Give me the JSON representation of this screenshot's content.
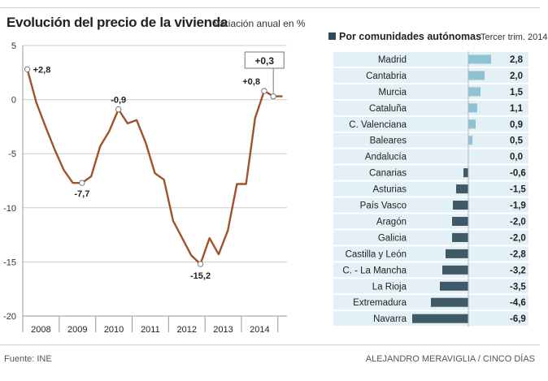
{
  "left_title": "Evolución del precio de la vivienda",
  "left_subtitle": "Variación anual en %",
  "right_title": "Por comunidades autónomas",
  "right_subtitle": "Tercer trim. 2014",
  "source": "Fuente: INE",
  "credit": "ALEJANDRO MERAVIGLIA / CINCO DÍAS",
  "colors": {
    "line": "#a0522d",
    "bar_positive": "#8fc3d3",
    "bar_negative": "#3f5a66",
    "row_band": "#e3f0f5",
    "grid": "#cccccc"
  },
  "chart_data": [
    {
      "type": "line",
      "title": "Evolución del precio de la vivienda",
      "subtitle": "Variación anual en %",
      "ylim": [
        -20,
        5
      ],
      "y_ticks": [
        5,
        0,
        -5,
        -10,
        -15,
        -20
      ],
      "x_tick_labels": [
        "2008",
        "2009",
        "2010",
        "2011",
        "2012",
        "2013",
        "2014"
      ],
      "x_range": [
        2007.5,
        2014.75
      ],
      "series": [
        {
          "name": "Variación anual",
          "x": [
            2007.625,
            2007.875,
            2008.125,
            2008.375,
            2008.625,
            2008.875,
            2009.125,
            2009.375,
            2009.625,
            2009.875,
            2010.125,
            2010.375,
            2010.625,
            2010.875,
            2011.125,
            2011.375,
            2011.625,
            2011.875,
            2012.125,
            2012.375,
            2012.625,
            2012.875,
            2013.125,
            2013.375,
            2013.625,
            2013.875,
            2014.125,
            2014.375,
            2014.625
          ],
          "y": [
            2.8,
            -0.3,
            -2.5,
            -4.6,
            -6.5,
            -7.7,
            -7.7,
            -7.1,
            -4.3,
            -2.9,
            -0.9,
            -2.2,
            -1.9,
            -4.0,
            -6.8,
            -7.4,
            -11.2,
            -12.8,
            -14.4,
            -15.2,
            -12.8,
            -14.3,
            -12.1,
            -7.8,
            -7.8,
            -1.7,
            0.8,
            0.3,
            0.3
          ]
        }
      ],
      "annotations": [
        {
          "label": "+2,8",
          "x": 2007.625,
          "y": 2.8
        },
        {
          "label": "-7,7",
          "x": 2009.125,
          "y": -7.7
        },
        {
          "label": "-0,9",
          "x": 2010.125,
          "y": -0.9
        },
        {
          "label": "-15,2",
          "x": 2012.375,
          "y": -15.2
        },
        {
          "label": "+0,8",
          "x": 2014.125,
          "y": 0.8
        },
        {
          "label": "+0,3",
          "x": 2014.375,
          "y": 0.3,
          "boxed": true
        }
      ]
    },
    {
      "type": "bar",
      "orientation": "horizontal",
      "title": "Por comunidades autónomas",
      "subtitle": "Tercer trim. 2014",
      "categories": [
        "Madrid",
        "Cantabria",
        "Murcia",
        "Cataluña",
        "C. Valenciana",
        "Baleares",
        "Andalucía",
        "Canarias",
        "Asturias",
        "País Vasco",
        "Aragón",
        "Galicia",
        "Castilla y León",
        "C. - La Mancha",
        "La Rioja",
        "Extremadura",
        "Navarra"
      ],
      "values": [
        2.8,
        2.0,
        1.5,
        1.1,
        0.9,
        0.5,
        0.0,
        -0.6,
        -1.5,
        -1.9,
        -2.0,
        -2.0,
        -2.8,
        -3.2,
        -3.5,
        -4.6,
        -6.9
      ],
      "value_labels": [
        "2,8",
        "2,0",
        "1,5",
        "1,1",
        "0,9",
        "0,5",
        "0,0",
        "-0,6",
        "-1,5",
        "-1,9",
        "-2,0",
        "-2,0",
        "-2,8",
        "-3,2",
        "-3,5",
        "-4,6",
        "-6,9"
      ]
    }
  ]
}
